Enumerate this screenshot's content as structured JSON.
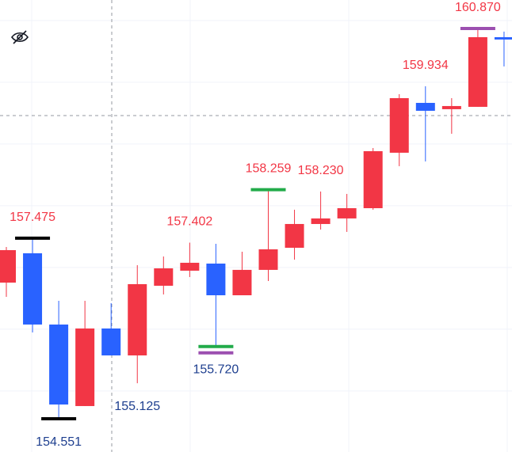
{
  "chart_data": {
    "type": "candlestick",
    "open": [
      156.755,
      157.23,
      156.076,
      154.756,
      156.012,
      155.576,
      156.704,
      156.948,
      157.063,
      156.55,
      156.961,
      157.319,
      157.704,
      157.794,
      157.96,
      158.858,
      159.665,
      159.563,
      159.601,
      160.729
    ],
    "high": [
      157.332,
      157.475,
      156.461,
      156.461,
      156.422,
      157.037,
      157.178,
      157.402,
      157.383,
      157.255,
      158.259,
      157.935,
      158.23,
      158.191,
      158.934,
      159.806,
      159.934,
      159.742,
      160.87,
      160.819
    ],
    "low": [
      156.525,
      155.948,
      154.551,
      154.756,
      155.576,
      155.125,
      156.563,
      156.845,
      155.72,
      156.55,
      156.781,
      157.127,
      157.614,
      157.576,
      157.935,
      158.64,
      158.717,
      159.165,
      159.601,
      160.255
    ],
    "close": [
      157.281,
      156.076,
      154.781,
      156.012,
      155.576,
      156.73,
      156.986,
      157.076,
      156.55,
      156.961,
      157.294,
      157.704,
      157.794,
      157.96,
      158.883,
      159.742,
      159.537,
      159.614,
      160.729,
      160.691
    ],
    "up_color": "#f23645",
    "down_color": "#2962ff",
    "ylim": [
      154.012,
      161.331
    ],
    "ygrid": [
      155,
      156,
      157,
      158,
      159,
      160,
      161
    ],
    "grid": true,
    "annotations": [
      {
        "index": 1,
        "kind": "high",
        "label": "157.475",
        "colors": [
          "#000000"
        ]
      },
      {
        "index": 2,
        "kind": "low",
        "label": "154.551",
        "colors": [
          "#000000"
        ]
      },
      {
        "index": 5,
        "kind": "low",
        "label": "155.125",
        "colors": []
      },
      {
        "index": 7,
        "kind": "high",
        "label": "157.402",
        "colors": []
      },
      {
        "index": 8,
        "kind": "low",
        "label": "155.720",
        "colors": [
          "#22ab4a",
          "#9c4fb0"
        ]
      },
      {
        "index": 10,
        "kind": "high",
        "label": "158.259",
        "colors": [
          "#22ab4a"
        ]
      },
      {
        "index": 12,
        "kind": "high",
        "label": "158.230",
        "colors": []
      },
      {
        "index": 16,
        "kind": "high",
        "label": "159.934",
        "colors": []
      },
      {
        "index": 18,
        "kind": "high",
        "label": "160.870",
        "colors": [
          "#9c4fb0"
        ]
      }
    ],
    "high_label_color": "#f23645",
    "low_label_color": "#1e3f8f"
  }
}
